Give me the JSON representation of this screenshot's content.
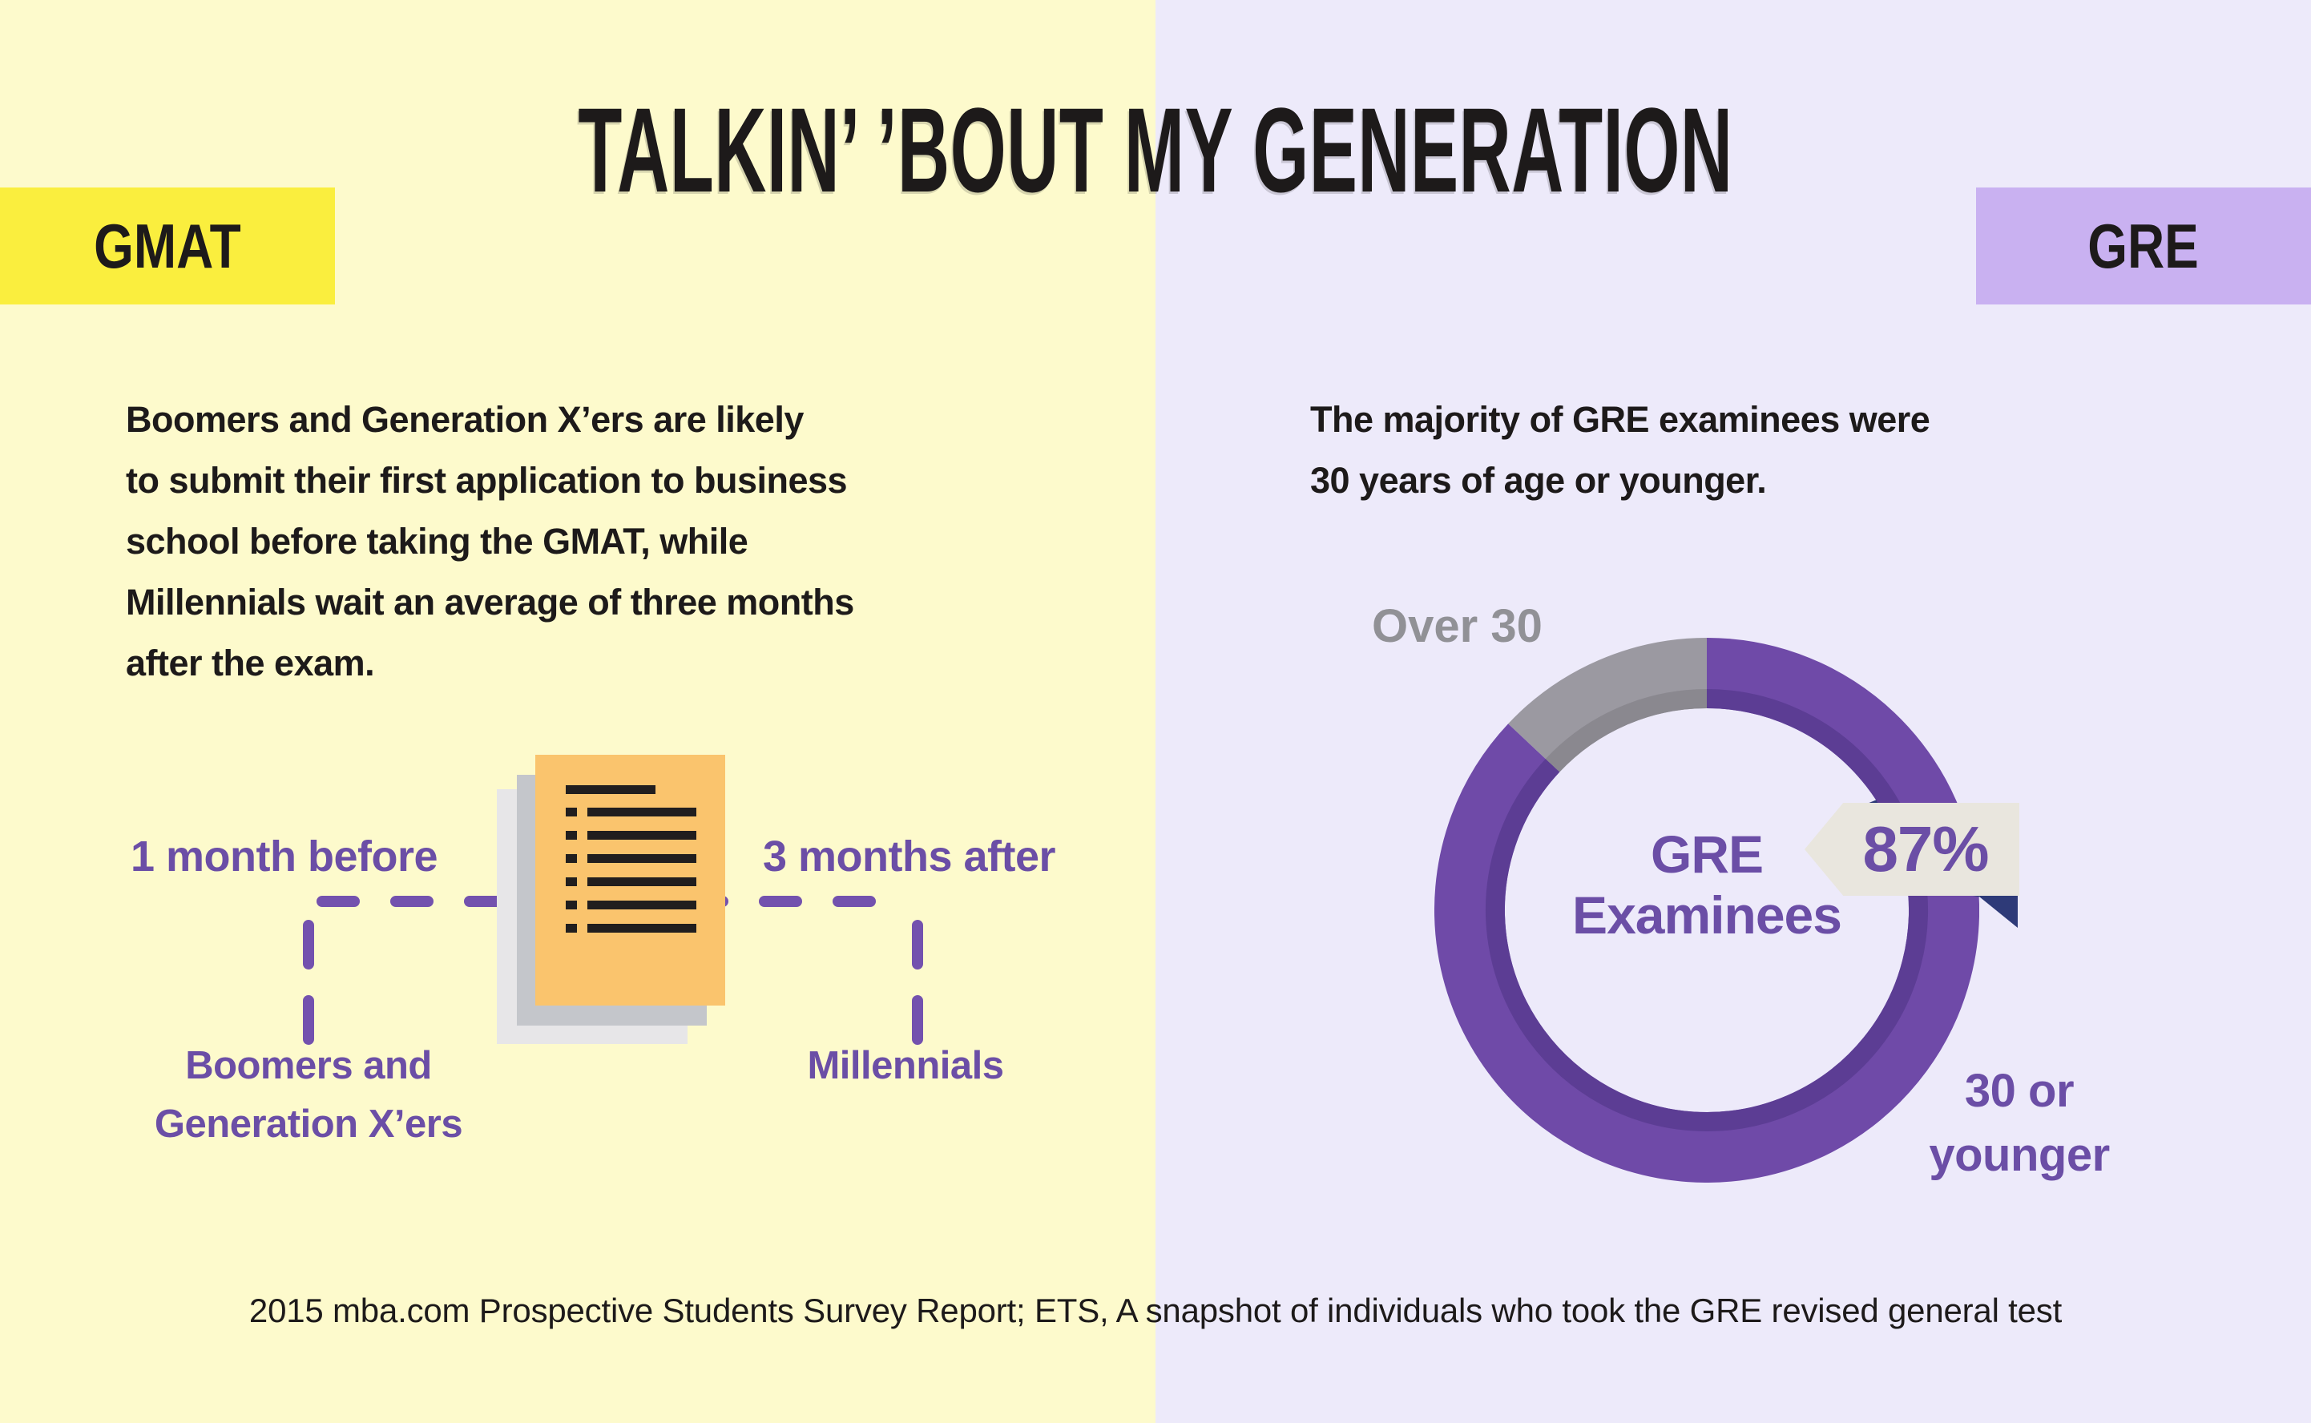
{
  "title": "TALKIN’ ’BOUT MY GENERATION",
  "badges": {
    "left": "GMAT",
    "right": "GRE"
  },
  "gmat": {
    "paragraph_lines": [
      "Boomers and Generation X’ers are likely",
      "to submit their first application to business",
      "school before taking the GMAT, while",
      "Millennials wait an average of three months",
      "after the exam."
    ],
    "timeline": {
      "left_label": "1 month before",
      "right_label": "3 months after",
      "left_group_lines": [
        "Boomers and",
        "Generation X’ers"
      ],
      "right_group": "Millennials"
    }
  },
  "gre": {
    "paragraph_lines": [
      "The majority of GRE examinees were",
      "30 years of age or younger."
    ],
    "donut": {
      "center_lines": [
        "GRE",
        "Examinees"
      ],
      "callout_value": "87%",
      "label_over_30": "Over 30",
      "label_younger_lines": [
        "30 or",
        "younger"
      ]
    }
  },
  "footer": "2015 mba.com Prospective Students Survey Report; ETS, A snapshot of individuals who took the GRE revised general test",
  "chart_data": {
    "type": "pie",
    "subtype": "donut",
    "title": "GRE Examinees by age",
    "categories": [
      "30 or younger",
      "Over 30"
    ],
    "values": [
      87,
      13
    ],
    "unit": "percent",
    "legend_position": "around-ring",
    "annotations": [
      "87% callout flag on the 30-or-younger segment"
    ],
    "segment_colors": [
      "#6F4AA8",
      "#9B99A1"
    ],
    "start": "12-o-clock, Over-30 sweeps counterclockwise from top"
  },
  "colors": {
    "left_bg": "#FDFACC",
    "right_bg": "#EDEAFA",
    "gmat_badge": "#FAEE3E",
    "gre_badge": "#C9B1F1",
    "ink": "#1D1A1A",
    "purple": "#6B4EA6",
    "dash": "#7351AE",
    "gray_label": "#919196",
    "ring_purple": "#6F4AA8",
    "ring_purple_dark": "#5C3D94",
    "ring_gray": "#9B99A1",
    "ring_gray_dark": "#8A888F",
    "paper_front": "#FAC46D",
    "paper_mid": "#C4C6CB",
    "paper_back": "#E7E6E8",
    "doc_ink": "#211E1E",
    "banner_bg": "#E9E6DE",
    "fold_navy": "#2E3A78"
  }
}
